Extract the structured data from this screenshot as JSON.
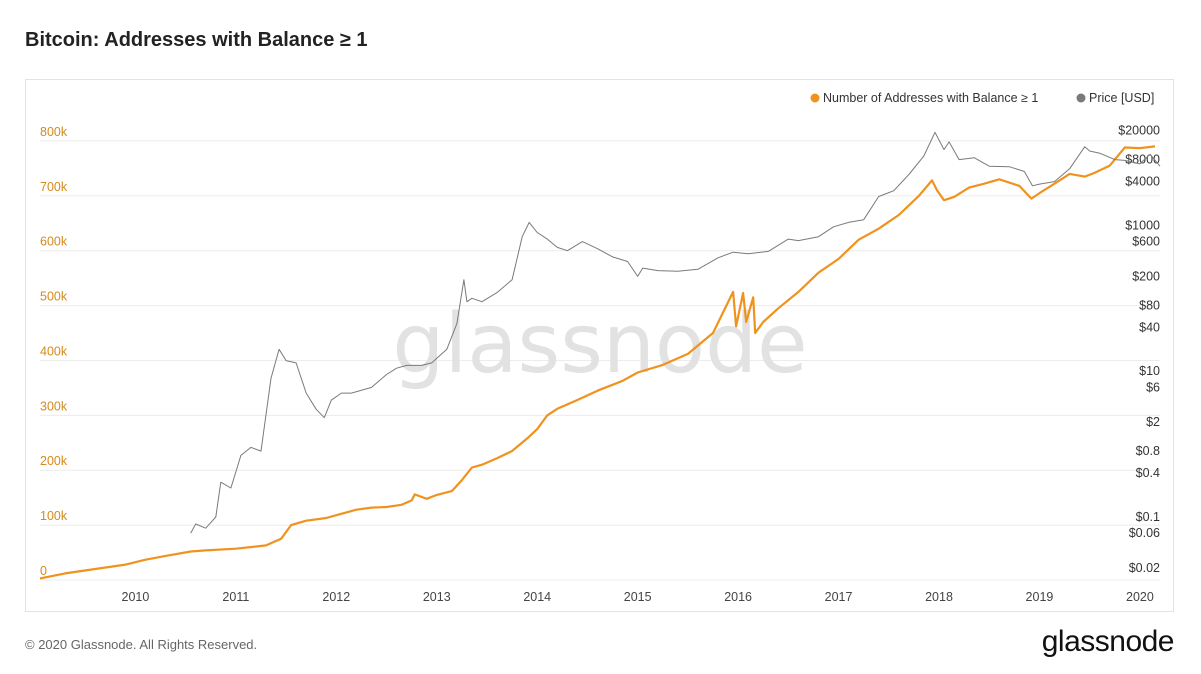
{
  "page": {
    "title": "Bitcoin: Addresses with Balance ≥ 1",
    "footer": "© 2020 Glassnode. All Rights Reserved.",
    "brand": "glassnode",
    "watermark": "glassnode"
  },
  "colors": {
    "addresses": "#f0921e",
    "price": "#7a7a7a",
    "left_axis": "#d58a1d",
    "grid": "#ececec"
  },
  "chart_data": {
    "type": "line",
    "title": "Bitcoin: Addresses with Balance ≥ 1",
    "legend_position": "top-right",
    "grid": true,
    "x_ticks": [
      "2010",
      "2011",
      "2012",
      "2013",
      "2014",
      "2015",
      "2016",
      "2017",
      "2018",
      "2019",
      "2020"
    ],
    "xlim": [
      2009.05,
      2020.2
    ],
    "y_left": {
      "ticks": [
        0,
        100000,
        200000,
        300000,
        400000,
        500000,
        600000,
        700000,
        800000
      ],
      "tick_labels": [
        "0",
        "100k",
        "200k",
        "300k",
        "400k",
        "500k",
        "600k",
        "700k",
        "800k"
      ],
      "ylim": [
        0,
        860000
      ]
    },
    "y_right": {
      "scale": "log",
      "ticks": [
        0.02,
        0.06,
        0.1,
        0.4,
        0.8,
        2,
        6,
        10,
        40,
        80,
        200,
        600,
        1000,
        4000,
        8000,
        20000
      ],
      "tick_labels": [
        "$0.02",
        "$0.06",
        "$0.1",
        "$0.4",
        "$0.8",
        "$2",
        "$6",
        "$10",
        "$40",
        "$80",
        "$200",
        "$600",
        "$1000",
        "$4000",
        "$8000",
        "$20000"
      ]
    },
    "series": [
      {
        "name": "Number of Addresses with Balance ≥ 1",
        "axis": "left",
        "color": "#f0921e",
        "x": [
          2009.05,
          2009.3,
          2009.6,
          2009.9,
          2010.1,
          2010.3,
          2010.55,
          2010.7,
          2011.0,
          2011.3,
          2011.45,
          2011.55,
          2011.7,
          2011.9,
          2012.0,
          2012.2,
          2012.35,
          2012.5,
          2012.65,
          2012.75,
          2012.78,
          2012.9,
          2013.0,
          2013.15,
          2013.25,
          2013.35,
          2013.45,
          2013.6,
          2013.75,
          2013.9,
          2014.0,
          2014.1,
          2014.2,
          2014.4,
          2014.6,
          2014.85,
          2015.0,
          2015.25,
          2015.5,
          2015.75,
          2015.95,
          2015.98,
          2016.05,
          2016.08,
          2016.15,
          2016.17,
          2016.25,
          2016.4,
          2016.6,
          2016.8,
          2017.0,
          2017.2,
          2017.4,
          2017.6,
          2017.8,
          2017.93,
          2017.98,
          2018.05,
          2018.15,
          2018.3,
          2018.45,
          2018.6,
          2018.8,
          2018.92,
          2019.0,
          2019.15,
          2019.3,
          2019.45,
          2019.55,
          2019.7,
          2019.85,
          2020.0,
          2020.15
        ],
        "values": [
          3000,
          12000,
          20000,
          28000,
          37000,
          44000,
          52000,
          54000,
          57000,
          63000,
          75000,
          100000,
          108000,
          113000,
          118000,
          128000,
          132000,
          133000,
          137000,
          145000,
          156000,
          148000,
          155000,
          162000,
          182000,
          205000,
          210000,
          222000,
          235000,
          258000,
          275000,
          300000,
          312000,
          328000,
          345000,
          363000,
          378000,
          392000,
          412000,
          450000,
          525000,
          462000,
          523000,
          470000,
          515000,
          450000,
          470000,
          495000,
          525000,
          560000,
          585000,
          620000,
          640000,
          665000,
          700000,
          728000,
          710000,
          692000,
          698000,
          715000,
          722000,
          730000,
          718000,
          695000,
          705000,
          722000,
          740000,
          735000,
          742000,
          755000,
          788000,
          787000,
          790000
        ]
      },
      {
        "name": "Price [USD]",
        "axis": "right",
        "color": "#7a7a7a",
        "x": [
          2010.55,
          2010.6,
          2010.7,
          2010.8,
          2010.85,
          2010.95,
          2011.05,
          2011.15,
          2011.25,
          2011.35,
          2011.43,
          2011.5,
          2011.6,
          2011.7,
          2011.8,
          2011.88,
          2011.95,
          2012.05,
          2012.15,
          2012.35,
          2012.5,
          2012.6,
          2012.7,
          2012.85,
          2012.95,
          2013.1,
          2013.2,
          2013.27,
          2013.3,
          2013.35,
          2013.45,
          2013.6,
          2013.75,
          2013.85,
          2013.92,
          2014.0,
          2014.1,
          2014.2,
          2014.3,
          2014.45,
          2014.6,
          2014.75,
          2014.9,
          2015.0,
          2015.05,
          2015.2,
          2015.4,
          2015.6,
          2015.8,
          2015.95,
          2016.1,
          2016.3,
          2016.5,
          2016.6,
          2016.8,
          2016.95,
          2017.1,
          2017.25,
          2017.4,
          2017.55,
          2017.7,
          2017.85,
          2017.96,
          2018.05,
          2018.1,
          2018.2,
          2018.35,
          2018.5,
          2018.7,
          2018.85,
          2018.93,
          2019.0,
          2019.15,
          2019.3,
          2019.45,
          2019.5,
          2019.6,
          2019.75,
          2019.85,
          2020.0,
          2020.1,
          2020.2
        ],
        "values": [
          0.06,
          0.08,
          0.07,
          0.1,
          0.3,
          0.25,
          0.7,
          0.9,
          0.8,
          8,
          20,
          14,
          13,
          5,
          3,
          2.3,
          4,
          5,
          5,
          6,
          9,
          11,
          12,
          12,
          13,
          20,
          45,
          180,
          90,
          100,
          90,
          120,
          180,
          700,
          1100,
          800,
          650,
          500,
          450,
          600,
          480,
          370,
          320,
          200,
          260,
          240,
          235,
          250,
          360,
          430,
          410,
          440,
          650,
          620,
          700,
          960,
          1100,
          1200,
          2500,
          3000,
          5000,
          9000,
          19000,
          11000,
          14000,
          8000,
          8500,
          6500,
          6400,
          5500,
          3500,
          3700,
          4000,
          6000,
          12000,
          10500,
          9800,
          8000,
          7800,
          7000,
          9500,
          6500
        ]
      }
    ]
  }
}
